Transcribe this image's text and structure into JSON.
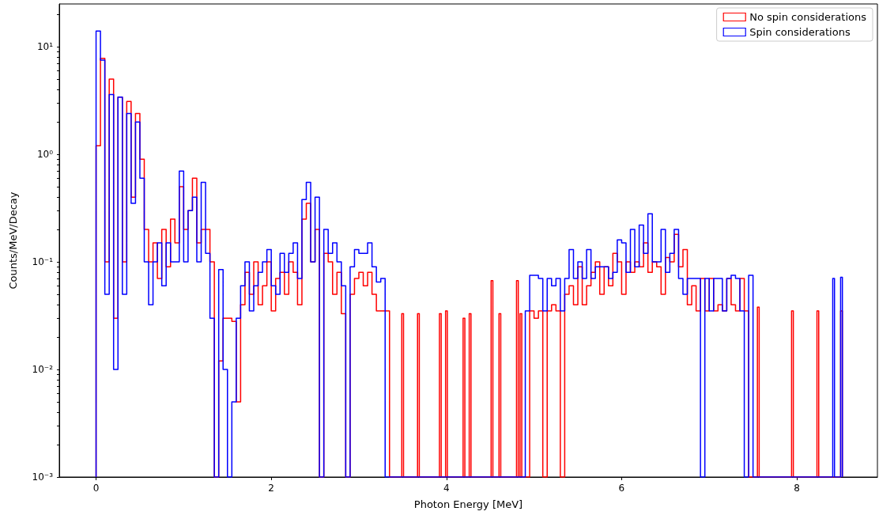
{
  "chart_data": {
    "type": "histogram",
    "xlabel": "Photon Energy [MeV]",
    "ylabel": "Counts/MeV/Decay",
    "log": "y",
    "grid": false,
    "legend": "top right",
    "xlim": [
      -0.42,
      8.92
    ],
    "xticks": [
      0,
      2,
      4,
      6,
      8
    ],
    "ylim": [
      0.001,
      25
    ],
    "yticks": [
      {
        "value": 0.001,
        "label": "10⁻³"
      },
      {
        "value": 0.002,
        "label": null
      },
      {
        "value": 0.003,
        "label": null
      },
      {
        "value": 0.004,
        "label": null
      },
      {
        "value": 0.005,
        "label": null
      },
      {
        "value": 0.006,
        "label": null
      },
      {
        "value": 0.007,
        "label": null
      },
      {
        "value": 0.008,
        "label": null
      },
      {
        "value": 0.009,
        "label": null
      },
      {
        "value": 0.01,
        "label": "10⁻²"
      },
      {
        "value": 0.02,
        "label": null
      },
      {
        "value": 0.03,
        "label": null
      },
      {
        "value": 0.04,
        "label": null
      },
      {
        "value": 0.05,
        "label": null
      },
      {
        "value": 0.06,
        "label": null
      },
      {
        "value": 0.07,
        "label": null
      },
      {
        "value": 0.08,
        "label": null
      },
      {
        "value": 0.09,
        "label": null
      },
      {
        "value": 0.1,
        "label": "10⁻¹"
      },
      {
        "value": 0.2,
        "label": null
      },
      {
        "value": 0.3,
        "label": null
      },
      {
        "value": 0.4,
        "label": null
      },
      {
        "value": 0.5,
        "label": null
      },
      {
        "value": 0.6,
        "label": null
      },
      {
        "value": 0.7,
        "label": null
      },
      {
        "value": 0.8,
        "label": null
      },
      {
        "value": 0.9,
        "label": null
      },
      {
        "value": 1,
        "label": "10⁰"
      },
      {
        "value": 2,
        "label": null
      },
      {
        "value": 3,
        "label": null
      },
      {
        "value": 4,
        "label": null
      },
      {
        "value": 5,
        "label": null
      },
      {
        "value": 6,
        "label": null
      },
      {
        "value": 7,
        "label": null
      },
      {
        "value": 8,
        "label": null
      },
      {
        "value": 9,
        "label": null
      },
      {
        "value": 10,
        "label": "10¹"
      },
      {
        "value": 20,
        "label": null
      }
    ],
    "bins": [
      0,
      0.05,
      0.1,
      0.15,
      0.2,
      0.25,
      0.3,
      0.35,
      0.4,
      0.45,
      0.5,
      0.55,
      0.6,
      0.65,
      0.7,
      0.75,
      0.8,
      0.85,
      0.9,
      0.95,
      1.0,
      1.05,
      1.1,
      1.15,
      1.2,
      1.25,
      1.3,
      1.35,
      1.4,
      1.45,
      1.5,
      1.55,
      1.6,
      1.65,
      1.7,
      1.75,
      1.8,
      1.85,
      1.9,
      1.95,
      2.0,
      2.05,
      2.1,
      2.15,
      2.2,
      2.25,
      2.3,
      2.35,
      2.4,
      2.45,
      2.5,
      2.55,
      2.6,
      2.65,
      2.7,
      2.75,
      2.8,
      2.85,
      2.9,
      2.95,
      3.0,
      3.05,
      3.1,
      3.15,
      3.2,
      3.25,
      3.3,
      3.35,
      3.49,
      3.51,
      3.67,
      3.69,
      3.92,
      3.94,
      3.99,
      4.01,
      4.19,
      4.21,
      4.26,
      4.28,
      4.51,
      4.53,
      4.6,
      4.62,
      4.8,
      4.82,
      4.84,
      4.86,
      4.9,
      4.95,
      5.0,
      5.05,
      5.1,
      5.15,
      5.2,
      5.25,
      5.3,
      5.35,
      5.4,
      5.45,
      5.5,
      5.55,
      5.6,
      5.65,
      5.7,
      5.75,
      5.8,
      5.85,
      5.9,
      5.95,
      6.0,
      6.05,
      6.1,
      6.15,
      6.2,
      6.25,
      6.3,
      6.35,
      6.4,
      6.45,
      6.5,
      6.55,
      6.6,
      6.65,
      6.7,
      6.75,
      6.8,
      6.85,
      6.9,
      6.95,
      7.0,
      7.05,
      7.1,
      7.15,
      7.2,
      7.25,
      7.3,
      7.35,
      7.4,
      7.45,
      7.5,
      7.55,
      7.57,
      7.94,
      7.96,
      8.23,
      8.25,
      8.41,
      8.43,
      8.5,
      8.52
    ],
    "series": [
      {
        "name": "No spin considerations",
        "color": "#ff0000",
        "values": [
          1.2,
          7.8,
          0.1,
          5,
          0.03,
          3.4,
          0.1,
          3.1,
          0.4,
          2.4,
          0.9,
          0.2,
          0.1,
          0.15,
          0.07,
          0.2,
          0.09,
          0.25,
          0.15,
          0.5,
          0.2,
          0.3,
          0.6,
          0.15,
          0.2,
          0.2,
          0.1,
          null,
          0.012,
          0.03,
          0.03,
          0.028,
          0.005,
          0.04,
          0.08,
          0.05,
          0.1,
          0.04,
          0.06,
          0.1,
          0.035,
          0.07,
          0.08,
          0.05,
          0.1,
          0.08,
          0.04,
          0.25,
          0.35,
          0.1,
          0.2,
          null,
          0.12,
          0.1,
          0.05,
          0.08,
          0.033,
          null,
          0.05,
          0.07,
          0.08,
          0.06,
          0.08,
          0.05,
          0.035,
          0.035,
          0.035,
          null,
          0.033,
          null,
          0.033,
          null,
          0.033,
          null,
          0.035,
          null,
          0.03,
          null,
          0.033,
          null,
          0.067,
          null,
          0.033,
          null,
          0.067,
          null,
          0.033,
          null,
          null,
          0.035,
          0.03,
          0.035,
          null,
          0.035,
          0.04,
          0.035,
          null,
          0.05,
          0.06,
          0.04,
          0.09,
          0.04,
          0.06,
          0.08,
          0.1,
          0.05,
          0.09,
          0.06,
          0.12,
          0.1,
          0.05,
          0.1,
          0.08,
          0.1,
          0.09,
          0.15,
          0.08,
          0.1,
          0.09,
          0.05,
          0.11,
          0.1,
          0.18,
          0.09,
          0.13,
          0.04,
          0.06,
          0.035,
          0.07,
          0.035,
          0.07,
          0.035,
          0.04,
          0.035,
          0.07,
          0.04,
          0.035,
          0.07,
          0.035,
          null,
          null,
          0.038,
          null,
          0.035,
          null,
          0.035,
          null,
          null,
          null,
          0.035
        ]
      },
      {
        "name": "Spin considerations",
        "color": "#0000ff",
        "values": [
          14,
          7.5,
          0.05,
          3.6,
          0.01,
          3.4,
          0.05,
          2.4,
          0.35,
          2.0,
          0.6,
          0.1,
          0.04,
          0.1,
          0.15,
          0.06,
          0.15,
          0.1,
          0.1,
          0.7,
          0.1,
          0.3,
          0.4,
          0.1,
          0.55,
          0.12,
          0.03,
          null,
          0.085,
          0.01,
          null,
          0.005,
          0.03,
          0.06,
          0.1,
          0.035,
          0.06,
          0.08,
          0.1,
          0.13,
          0.06,
          0.05,
          0.12,
          0.08,
          0.12,
          0.15,
          0.07,
          0.38,
          0.55,
          0.1,
          0.4,
          null,
          0.2,
          0.12,
          0.15,
          0.1,
          0.06,
          null,
          0.09,
          0.13,
          0.12,
          0.12,
          0.15,
          0.09,
          0.065,
          0.07,
          null,
          null,
          null,
          null,
          null,
          null,
          null,
          null,
          null,
          null,
          null,
          null,
          null,
          null,
          null,
          null,
          null,
          null,
          null,
          null,
          null,
          null,
          0.035,
          0.075,
          0.075,
          0.07,
          0.035,
          0.07,
          0.06,
          0.07,
          0.035,
          0.07,
          0.13,
          0.07,
          0.1,
          0.07,
          0.13,
          0.07,
          0.09,
          0.09,
          0.09,
          0.07,
          0.08,
          0.16,
          0.15,
          0.08,
          0.2,
          0.09,
          0.22,
          0.12,
          0.28,
          0.1,
          0.1,
          0.2,
          0.08,
          0.12,
          0.2,
          0.07,
          0.05,
          0.07,
          0.07,
          0.07,
          null,
          0.07,
          0.035,
          0.07,
          0.07,
          0.035,
          0.07,
          0.075,
          0.07,
          0.035,
          null,
          0.075,
          null,
          null,
          null,
          null,
          null,
          null,
          null,
          0.07,
          null,
          0.072
        ]
      }
    ]
  }
}
